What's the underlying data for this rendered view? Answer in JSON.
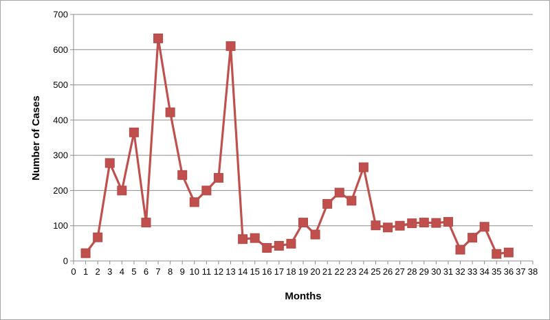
{
  "chart_data": {
    "type": "line",
    "title": "",
    "xlabel": "Months",
    "ylabel": "Number of Cases",
    "xlim": [
      0,
      38
    ],
    "ylim": [
      0,
      700
    ],
    "x_ticks": [
      0,
      1,
      2,
      3,
      4,
      5,
      6,
      7,
      8,
      9,
      10,
      11,
      12,
      13,
      14,
      15,
      16,
      17,
      18,
      19,
      20,
      21,
      22,
      23,
      24,
      25,
      26,
      27,
      28,
      29,
      30,
      31,
      32,
      33,
      34,
      35,
      36,
      37,
      38
    ],
    "y_ticks": [
      0,
      100,
      200,
      300,
      400,
      500,
      600,
      700
    ],
    "grid": "horizontal",
    "legend": "none",
    "series": [
      {
        "color": "#c0504d",
        "marker": "square",
        "x": [
          1,
          2,
          3,
          4,
          5,
          6,
          7,
          8,
          9,
          10,
          11,
          12,
          13,
          14,
          15,
          16,
          17,
          18,
          19,
          20,
          21,
          22,
          23,
          24,
          25,
          26,
          27,
          28,
          29,
          30,
          31,
          32,
          33,
          34,
          35,
          36
        ],
        "y": [
          22,
          67,
          278,
          200,
          365,
          109,
          632,
          422,
          244,
          167,
          200,
          236,
          610,
          62,
          65,
          37,
          43,
          49,
          109,
          75,
          162,
          194,
          171,
          266,
          101,
          95,
          100,
          107,
          109,
          108,
          111,
          32,
          66,
          97,
          20,
          24
        ]
      }
    ]
  }
}
